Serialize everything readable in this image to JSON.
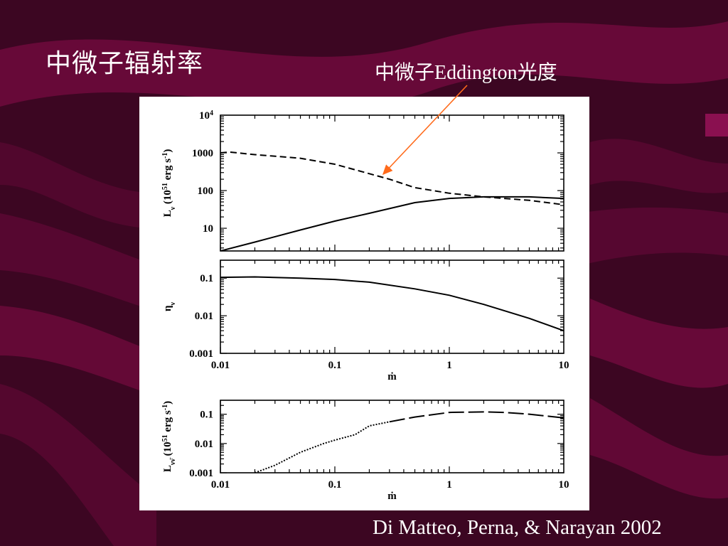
{
  "slide": {
    "title": "中微子辐射率",
    "annotation": "中微子Eddington光度",
    "citation": "Di Matteo, Perna, & Narayan 2002"
  },
  "colors": {
    "background": "#3c0622",
    "wave": "#6e0a3c",
    "arrow": "#ff6a1a",
    "text": "#ffffff"
  },
  "chart_data": [
    {
      "type": "line",
      "panel": "top",
      "ylabel": "L_ν (10^51 erg s^-1)",
      "xlabel": "",
      "xscale": "log",
      "yscale": "log",
      "xlim": [
        0.01,
        10
      ],
      "ylim": [
        2.5,
        10000
      ],
      "y_ticklabels": [
        "10",
        "100",
        "1000",
        "10^4"
      ],
      "x_ticklabels": [],
      "series": [
        {
          "style": "solid",
          "x": [
            0.01,
            0.02,
            0.05,
            0.1,
            0.2,
            0.5,
            1,
            2,
            5,
            10
          ],
          "y": [
            2.5,
            4.3,
            9,
            15.5,
            25,
            48,
            62,
            68,
            68,
            62
          ]
        },
        {
          "style": "dashed",
          "x": [
            0.01,
            0.012,
            0.02,
            0.05,
            0.1,
            0.2,
            0.3,
            0.5,
            1,
            2,
            5,
            10
          ],
          "y": [
            1000,
            1050,
            900,
            720,
            500,
            280,
            200,
            120,
            85,
            68,
            55,
            42
          ]
        }
      ]
    },
    {
      "type": "line",
      "panel": "middle",
      "ylabel": "η_ν",
      "xlabel": "ṁ",
      "xscale": "log",
      "yscale": "log",
      "xlim": [
        0.01,
        10
      ],
      "ylim": [
        0.001,
        0.3
      ],
      "y_ticklabels": [
        "0.001",
        "0.01",
        "0.1"
      ],
      "x_ticklabels": [
        "0.01",
        "0.1",
        "1",
        "10"
      ],
      "series": [
        {
          "style": "solid",
          "x": [
            0.01,
            0.02,
            0.05,
            0.1,
            0.2,
            0.5,
            1,
            2,
            5,
            10
          ],
          "y": [
            0.105,
            0.108,
            0.1,
            0.092,
            0.078,
            0.052,
            0.035,
            0.02,
            0.0085,
            0.004
          ]
        }
      ]
    },
    {
      "type": "line",
      "panel": "bottom",
      "ylabel": "L_νν̄ (10^51 erg s^-1)",
      "xlabel": "ṁ",
      "xscale": "log",
      "yscale": "log",
      "xlim": [
        0.01,
        10
      ],
      "ylim": [
        0.001,
        0.3
      ],
      "y_ticklabels": [
        "0.001",
        "0.01",
        "0.1"
      ],
      "x_ticklabels": [
        "0.01",
        "0.1",
        "1",
        "10"
      ],
      "series": [
        {
          "style": "dotted-to-dashed",
          "x": [
            0.02,
            0.03,
            0.05,
            0.08,
            0.1,
            0.15,
            0.2,
            0.3,
            0.5,
            1,
            2,
            3,
            5,
            10
          ],
          "y": [
            0.001,
            0.0018,
            0.005,
            0.01,
            0.013,
            0.02,
            0.04,
            0.055,
            0.08,
            0.115,
            0.12,
            0.115,
            0.1,
            0.075
          ]
        }
      ]
    }
  ]
}
